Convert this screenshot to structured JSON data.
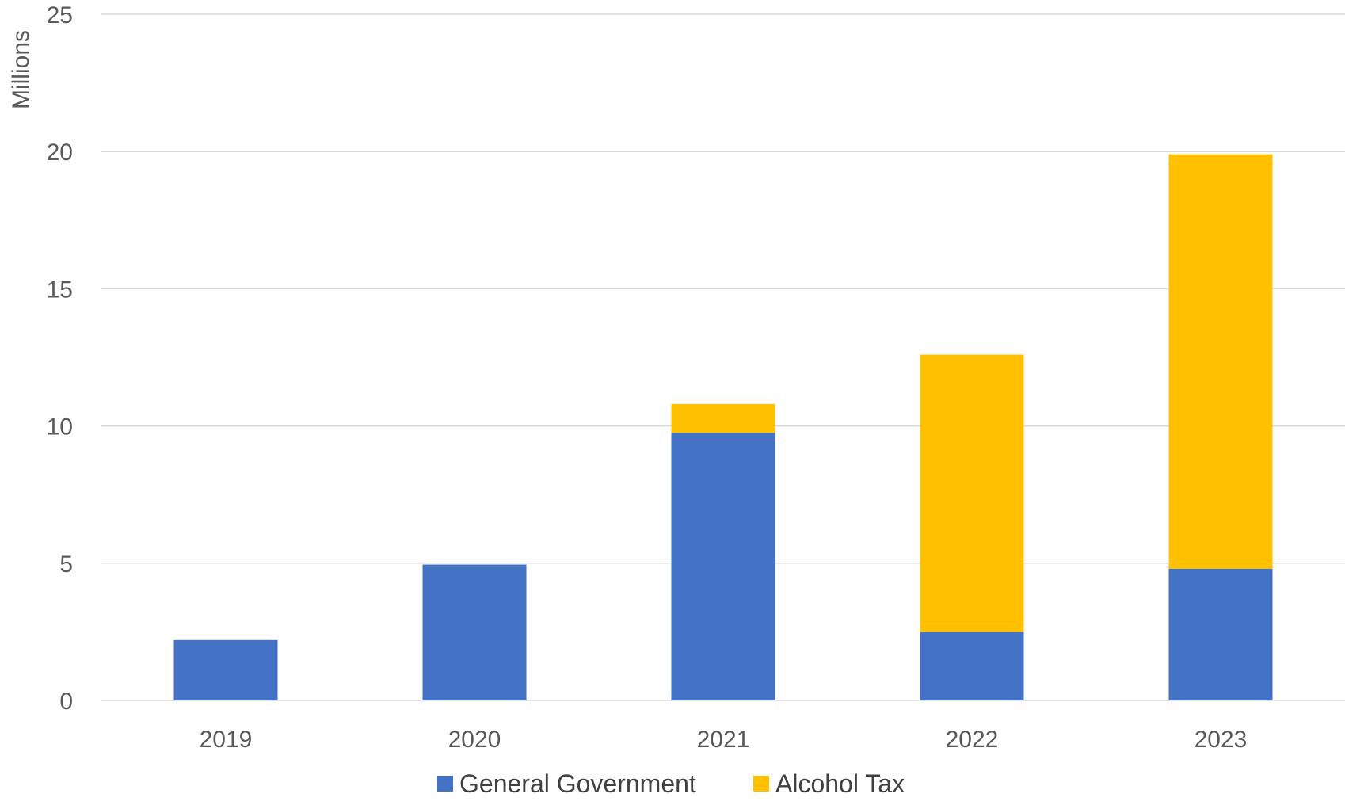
{
  "chart_data": {
    "type": "bar",
    "stacked": true,
    "title": "",
    "xlabel": "",
    "ylabel": "Millions",
    "ylim": [
      0,
      25
    ],
    "yticks": [
      0,
      5,
      10,
      15,
      20,
      25
    ],
    "grid": true,
    "legend_position": "bottom",
    "categories": [
      "2019",
      "2020",
      "2021",
      "2022",
      "2023"
    ],
    "series": [
      {
        "name": "General Government",
        "color": "#4472C4",
        "values": [
          2.2,
          4.95,
          9.75,
          2.5,
          4.8
        ]
      },
      {
        "name": "Alcohol Tax",
        "color": "#FFC000",
        "values": [
          0,
          0,
          1.05,
          10.1,
          15.1
        ]
      }
    ]
  }
}
